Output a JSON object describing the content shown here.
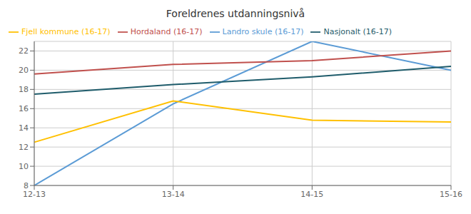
{
  "chart_data": {
    "type": "line",
    "title": "Foreldrenes utdanningsnivå",
    "categories": [
      "12-13",
      "13-14",
      "14-15",
      "15-16"
    ],
    "series": [
      {
        "name": "Landro skule (16-17)",
        "color": "#5b9bd5",
        "values": [
          8.0,
          16.5,
          23.0,
          20.0
        ]
      },
      {
        "name": "Fjell kommune (16-17)",
        "color": "#ffc000",
        "values": [
          12.5,
          16.8,
          14.8,
          14.6
        ]
      },
      {
        "name": "Hordaland (16-17)",
        "color": "#c0504d",
        "values": [
          19.6,
          20.6,
          21.0,
          22.0
        ]
      },
      {
        "name": "Nasjonalt (16-17)",
        "color": "#1f5c6b",
        "values": [
          17.5,
          18.5,
          19.3,
          20.4
        ]
      }
    ],
    "ylim": [
      8,
      23
    ],
    "yticks": [
      8,
      10,
      12,
      14,
      16,
      18,
      20,
      22
    ],
    "grid": true,
    "legend": "upper left"
  }
}
